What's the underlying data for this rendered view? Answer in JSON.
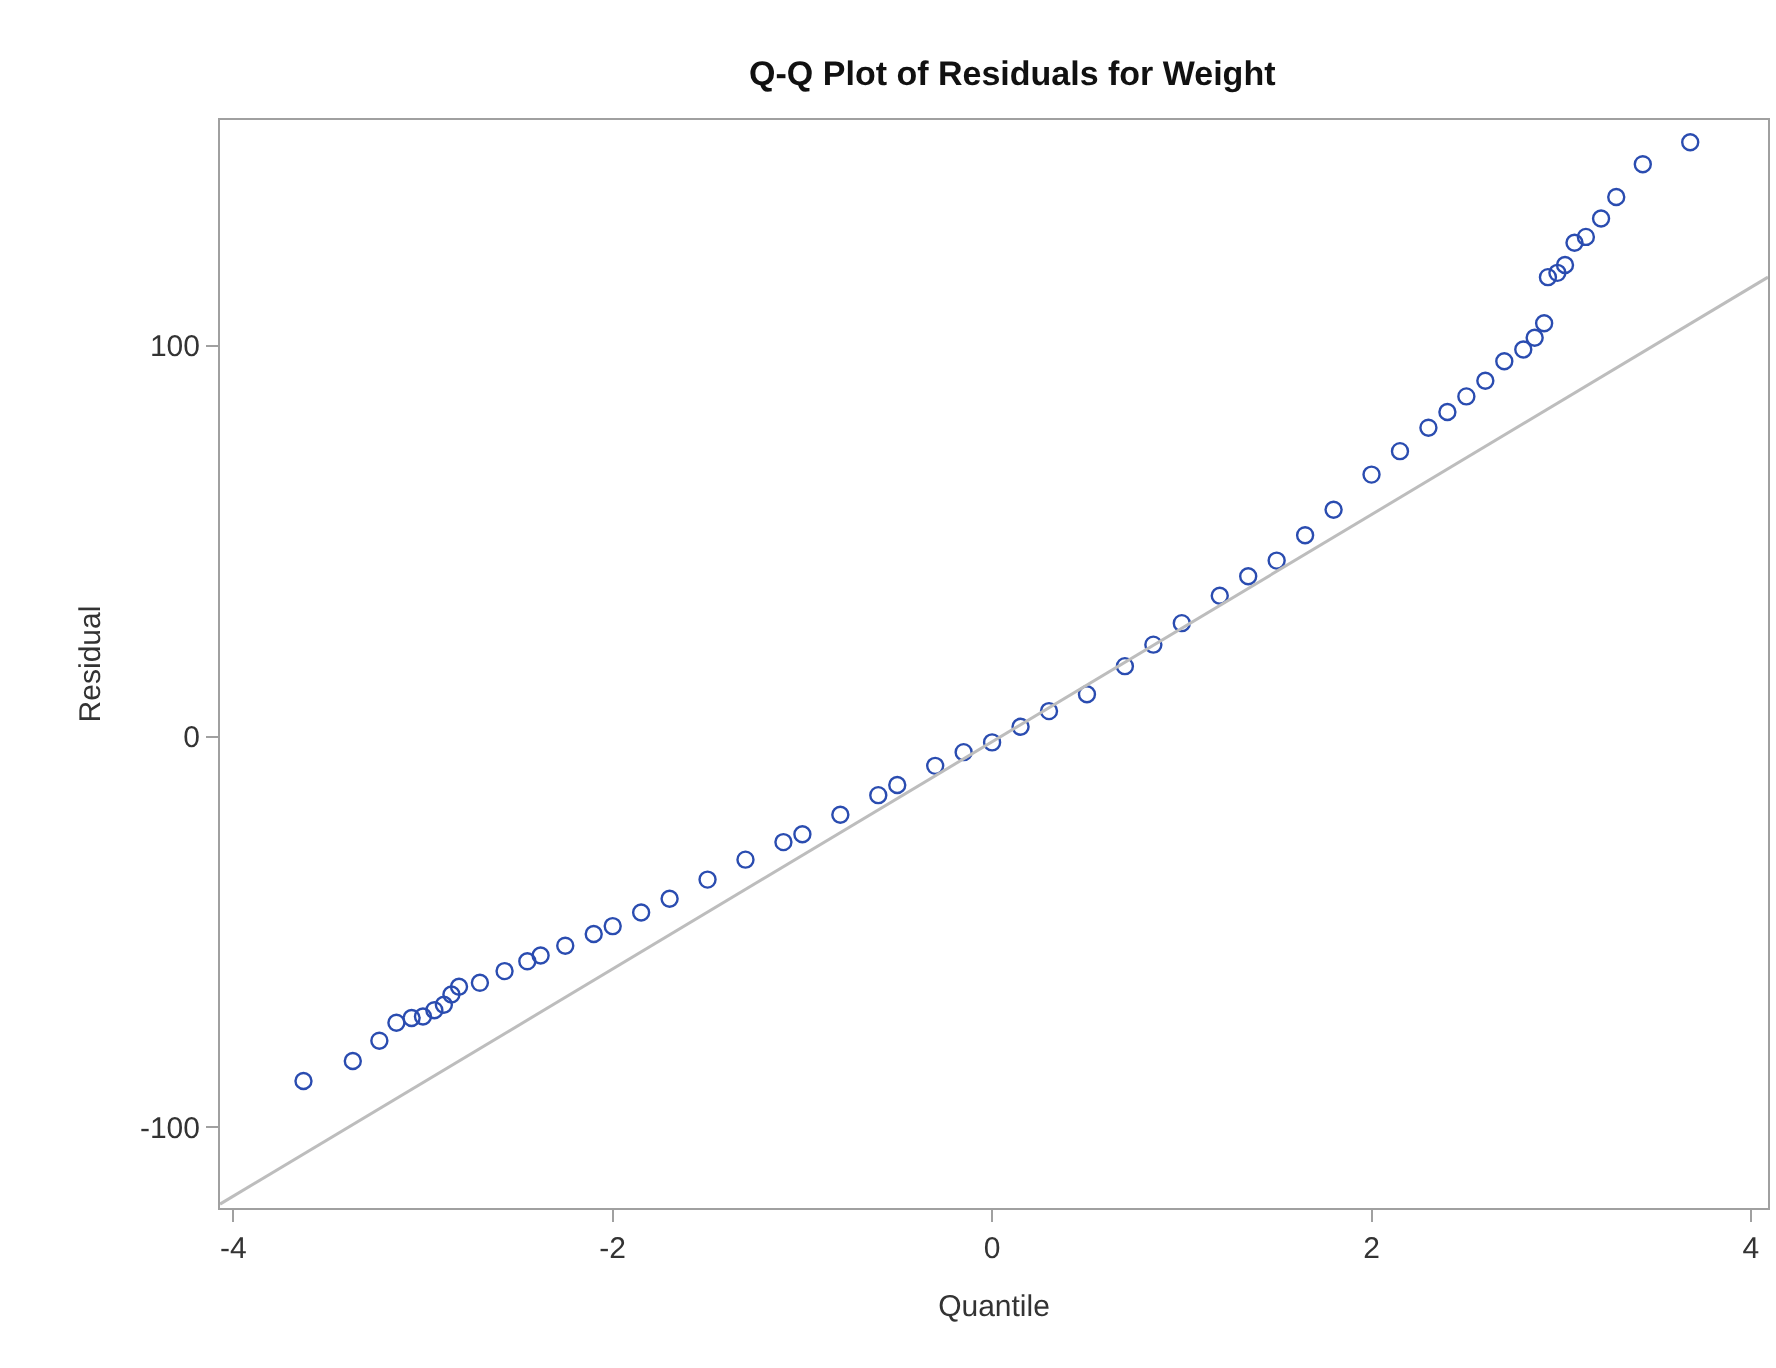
{
  "chart_data": {
    "type": "scatter",
    "title": "Q-Q Plot of Residuals for Weight",
    "xlabel": "Quantile",
    "ylabel": "Residual",
    "xlim": [
      -4.07,
      4.09
    ],
    "ylim": [
      -120.6,
      157.7
    ],
    "xticks": [
      -4,
      -2,
      0,
      2,
      4
    ],
    "yticks": [
      -100,
      0,
      100
    ],
    "marker": "circle",
    "series": [
      {
        "color": "#2a4cb0",
        "x": [
          -3.63,
          -3.37,
          -3.23,
          -3.14,
          -3.06,
          -3.0,
          -2.94,
          -2.89,
          -2.85,
          -2.81,
          -2.7,
          -2.57,
          -2.45,
          -2.38,
          -2.25,
          -2.1,
          -2.0,
          -1.85,
          -1.7,
          -1.5,
          -1.3,
          -1.1,
          -1.0,
          -0.8,
          -0.6,
          -0.5,
          -0.3,
          -0.15,
          0.0,
          0.15,
          0.3,
          0.5,
          0.7,
          0.85,
          1.0,
          1.2,
          1.35,
          1.5,
          1.65,
          1.8,
          2.0,
          2.15,
          2.3,
          2.4,
          2.5,
          2.6,
          2.7,
          2.8,
          2.86,
          2.91,
          2.93,
          2.98,
          3.02,
          3.07,
          3.13,
          3.21,
          3.29,
          3.43,
          3.68
        ],
        "values": [
          -88.1,
          -83,
          -77.8,
          -73.2,
          -72,
          -71.6,
          -70,
          -68.6,
          -66,
          -64,
          -63,
          -60,
          -57.5,
          -56,
          -53.5,
          -50.5,
          -48.5,
          -45,
          -41.5,
          -36.6,
          -31.5,
          -27,
          -25,
          -20,
          -15,
          -12.4,
          -7.5,
          -4,
          -1.5,
          2.5,
          6.5,
          10.8,
          18,
          23.5,
          29,
          36,
          41,
          45,
          51.5,
          58,
          67,
          73,
          79,
          83,
          87,
          91,
          96,
          99,
          102,
          105.7,
          117.5,
          118.6,
          120.6,
          126.3,
          127.8,
          132.5,
          138,
          146.4,
          152
        ]
      },
      {
        "type": "line",
        "color": "#bdbdbd",
        "marker": "none",
        "x": [
          -4.07,
          4.09
        ],
        "values": [
          -119.6,
          117.5
        ]
      }
    ]
  }
}
